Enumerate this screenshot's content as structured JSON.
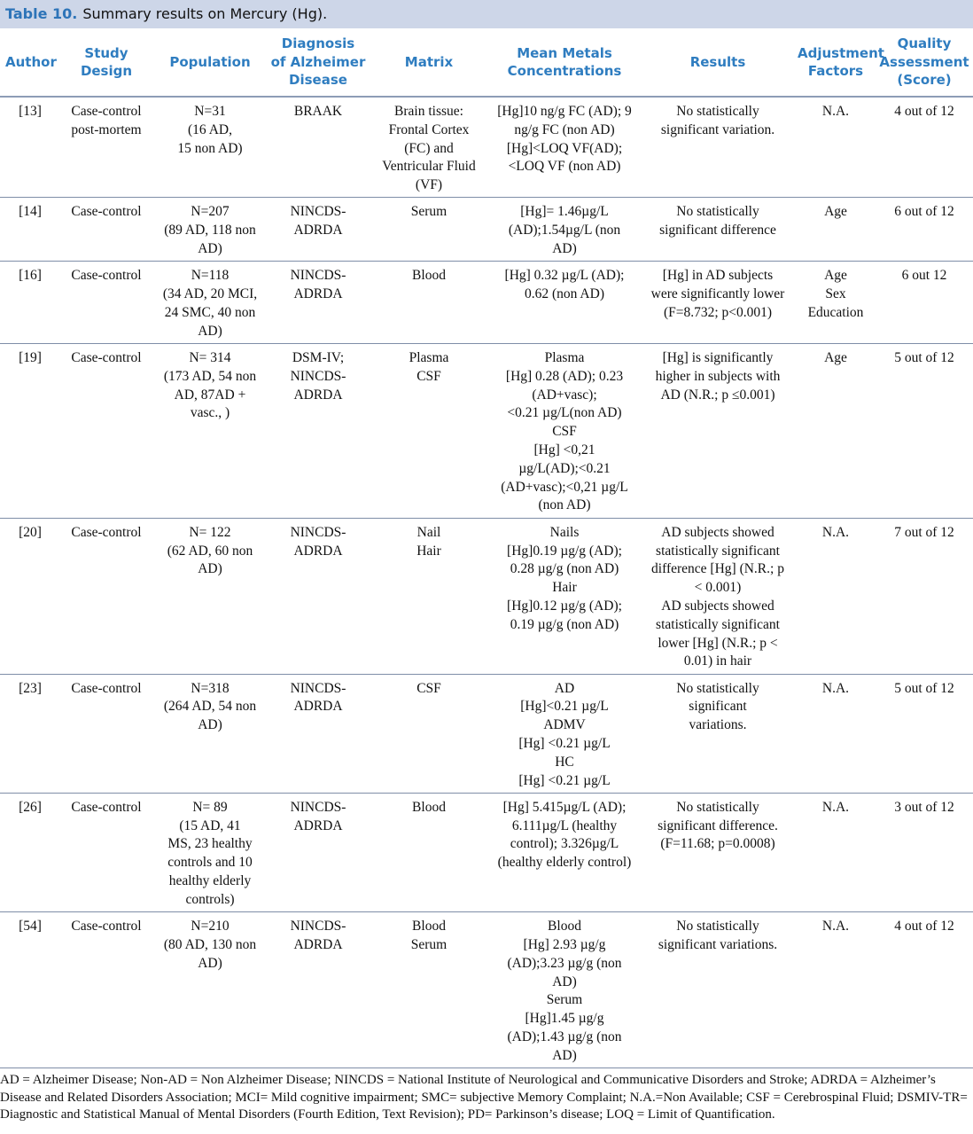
{
  "title": {
    "label": "Table 10.",
    "text": "Summary results on Mercury (Hg)."
  },
  "table": {
    "headers": [
      [
        "Author"
      ],
      [
        "Study",
        "Design"
      ],
      [
        "Population"
      ],
      [
        "Diagnosis",
        "of Alzheimer",
        "Disease"
      ],
      [
        "Matrix"
      ],
      [
        "Mean Metals",
        "Concentrations"
      ],
      [
        "Results"
      ],
      [
        "Adjustment",
        "Factors"
      ],
      [
        "Quality",
        "Assessment",
        "(Score)"
      ]
    ],
    "rows": [
      [
        [
          "[13]"
        ],
        [
          "Case-control",
          "post-mortem"
        ],
        [
          "N=31",
          "(16 AD,",
          "15 non AD)"
        ],
        [
          "BRAAK"
        ],
        [
          "Brain tissue:",
          "Frontal Cortex",
          "(FC) and",
          "Ventricular Fluid",
          "(VF)"
        ],
        [
          "[Hg]10 ng/g FC (AD); 9",
          "ng/g FC (non AD)",
          "[Hg]<LOQ VF(AD);",
          "<LOQ VF (non AD)"
        ],
        [
          "No statistically",
          "significant variation."
        ],
        [
          "N.A."
        ],
        [
          "4 out of 12"
        ]
      ],
      [
        [
          "[14]"
        ],
        [
          "Case-control"
        ],
        [
          "N=207",
          "(89 AD, 118 non",
          "AD)"
        ],
        [
          "NINCDS-",
          "ADRDA"
        ],
        [
          "Serum"
        ],
        [
          "[Hg]= 1.46µg/L",
          "(AD);1.54µg/L (non",
          "AD)"
        ],
        [
          "No statistically",
          "significant difference"
        ],
        [
          "Age"
        ],
        [
          "6 out of 12"
        ]
      ],
      [
        [
          "[16]"
        ],
        [
          "Case-control"
        ],
        [
          "N=118",
          "(34 AD, 20 MCI,",
          "24 SMC, 40 non",
          "AD)"
        ],
        [
          "NINCDS-",
          "ADRDA"
        ],
        [
          "Blood"
        ],
        [
          "[Hg] 0.32 µg/L (AD);",
          "0.62 (non AD)"
        ],
        [
          "[Hg] in AD subjects",
          "were significantly lower",
          "(F=8.732; p<0.001)"
        ],
        [
          "Age",
          "Sex",
          "Education"
        ],
        [
          "6 out 12"
        ]
      ],
      [
        [
          "[19]"
        ],
        [
          "Case-control"
        ],
        [
          "N= 314",
          "(173 AD, 54 non",
          "AD, 87AD +",
          "vasc., )"
        ],
        [
          "DSM-IV;",
          "NINCDS-",
          "ADRDA"
        ],
        [
          "Plasma",
          "CSF"
        ],
        [
          "Plasma",
          "[Hg] 0.28 (AD); 0.23",
          "(AD+vasc);",
          "<0.21 µg/L(non AD)",
          "CSF",
          "[Hg] <0,21",
          "µg/L(AD);<0.21",
          "(AD+vasc);<0,21 µg/L",
          "(non AD)"
        ],
        [
          "[Hg] is significantly",
          "higher in subjects with",
          "AD (N.R.; p ≤0.001)"
        ],
        [
          "Age"
        ],
        [
          "5 out of 12"
        ]
      ],
      [
        [
          "[20]"
        ],
        [
          "Case-control"
        ],
        [
          "N= 122",
          "(62 AD, 60 non",
          "AD)"
        ],
        [
          "NINCDS-",
          "ADRDA"
        ],
        [
          "Nail",
          "Hair"
        ],
        [
          "Nails",
          "[Hg]0.19 µg/g (AD);",
          "0.28 µg/g (non AD)",
          "Hair",
          "[Hg]0.12 µg/g (AD);",
          "0.19 µg/g (non AD)"
        ],
        [
          "AD subjects showed",
          "statistically significant",
          "difference [Hg] (N.R.; p",
          "< 0.001)",
          "AD subjects showed",
          "statistically significant",
          "lower [Hg] (N.R.; p <",
          "0.01) in hair"
        ],
        [
          "N.A."
        ],
        [
          "7 out of 12"
        ]
      ],
      [
        [
          "[23]"
        ],
        [
          "Case-control"
        ],
        [
          "N=318",
          "(264 AD, 54 non",
          "AD)"
        ],
        [
          "NINCDS-",
          "ADRDA"
        ],
        [
          "CSF"
        ],
        [
          "AD",
          "[Hg]<0.21 µg/L",
          "ADMV",
          "[Hg] <0.21 µg/L",
          "HC",
          "[Hg] <0.21 µg/L"
        ],
        [
          "No statistically",
          "significant",
          "variations."
        ],
        [
          "N.A."
        ],
        [
          "5 out of 12"
        ]
      ],
      [
        [
          "[26]"
        ],
        [
          "Case-control"
        ],
        [
          "N= 89",
          "(15 AD, 41",
          "MS, 23 healthy",
          "controls and 10",
          "healthy elderly",
          "controls)"
        ],
        [
          "NINCDS-",
          "ADRDA"
        ],
        [
          "Blood"
        ],
        [
          "[Hg] 5.415µg/L (AD);",
          "6.111µg/L (healthy",
          "control); 3.326µg/L",
          "(healthy elderly control)"
        ],
        [
          "No statistically",
          "significant difference.",
          "(F=11.68; p=0.0008)"
        ],
        [
          "N.A."
        ],
        [
          "3 out of 12"
        ]
      ],
      [
        [
          "[54]"
        ],
        [
          "Case-control"
        ],
        [
          "N=210",
          "(80 AD, 130 non",
          "AD)"
        ],
        [
          "NINCDS-",
          "ADRDA"
        ],
        [
          "Blood",
          "Serum"
        ],
        [
          "Blood",
          "[Hg] 2.93 µg/g",
          "(AD);3.23 µg/g (non",
          "AD)",
          "Serum",
          "[Hg]1.45 µg/g",
          "(AD);1.43 µg/g (non",
          "AD)"
        ],
        [
          "No statistically",
          "significant variations."
        ],
        [
          "N.A."
        ],
        [
          "4 out of 12"
        ]
      ]
    ]
  },
  "footnote": "AD = Alzheimer Disease; Non-AD = Non Alzheimer Disease; NINCDS = National Institute of Neurological and Communicative Disorders and Stroke; ADRDA = Alzheimer’s Disease and Related Disorders Association; MCI= Mild cognitive impairment; SMC= subjective Memory Complaint; N.A.=Non Available; CSF = Cerebrospinal Fluid; DSMIV-TR= Diagnostic and Statistical Manual of Mental Disorders (Fourth Edition, Text Revision); PD= Parkinson’s disease; LOQ = Limit of Quantification."
}
